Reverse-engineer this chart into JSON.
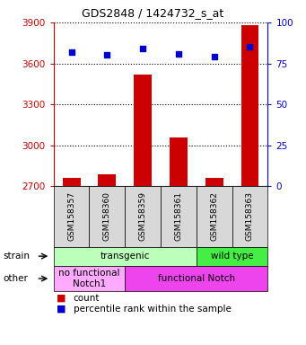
{
  "title": "GDS2848 / 1424732_s_at",
  "samples": [
    "GSM158357",
    "GSM158360",
    "GSM158359",
    "GSM158361",
    "GSM158362",
    "GSM158363"
  ],
  "counts": [
    2760,
    2790,
    3520,
    3060,
    2760,
    3880
  ],
  "percentiles": [
    82,
    80,
    84,
    81,
    79,
    85
  ],
  "ylim_left": [
    2700,
    3900
  ],
  "ylim_right": [
    0,
    100
  ],
  "yticks_left": [
    2700,
    3000,
    3300,
    3600,
    3900
  ],
  "yticks_right": [
    0,
    25,
    50,
    75,
    100
  ],
  "bar_color": "#cc0000",
  "dot_color": "#0000cc",
  "strain_labels": [
    {
      "text": "transgenic",
      "cols": [
        0,
        3
      ],
      "color": "#bbffbb"
    },
    {
      "text": "wild type",
      "cols": [
        4,
        5
      ],
      "color": "#44ee44"
    }
  ],
  "other_labels": [
    {
      "text": "no functional\nNotch1",
      "cols": [
        0,
        1
      ],
      "color": "#ffaaff"
    },
    {
      "text": "functional Notch",
      "cols": [
        2,
        5
      ],
      "color": "#ee44ee"
    }
  ],
  "strain_row_label": "strain",
  "other_row_label": "other",
  "legend_count_color": "#cc0000",
  "legend_dot_color": "#0000cc",
  "left_axis_color": "#cc0000",
  "right_axis_color": "#0000cc",
  "sample_cell_color": "#d8d8d8",
  "grid_color": "#000000"
}
